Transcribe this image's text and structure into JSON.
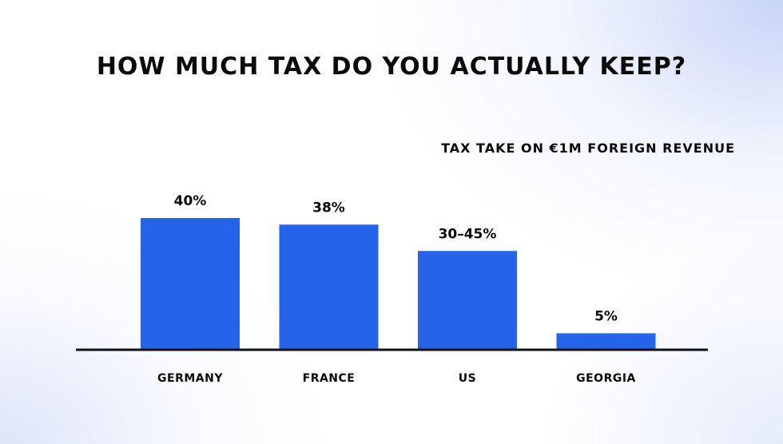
{
  "chart_data": {
    "type": "bar",
    "title": "HOW MUCH TAX DO YOU ACTUALLY KEEP?",
    "subtitle": "TAX TAKE ON €1M FOREIGN REVENUE",
    "categories": [
      "GERMANY",
      "FRANCE",
      "US",
      "GEORGIA"
    ],
    "values": [
      40,
      38,
      30,
      5
    ],
    "value_labels": [
      "40%",
      "38%",
      "30–45%",
      "5%"
    ],
    "ylim": [
      0,
      40
    ],
    "grid": false,
    "bar_color": "#2563EB",
    "axis_color": "#111111"
  }
}
